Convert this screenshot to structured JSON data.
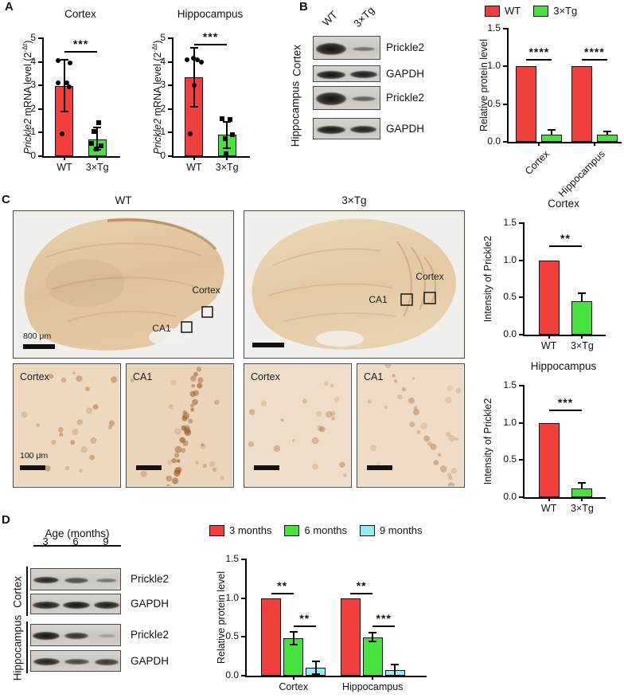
{
  "panel_labels": {
    "A": "A",
    "B": "B",
    "C": "C",
    "D": "D"
  },
  "colors": {
    "wt_red": "#f23e3c",
    "tg_green": "#46e13c",
    "cyan_9mo": "#8deef5"
  },
  "panel_c": {
    "columns": [
      {
        "title": "WT"
      },
      {
        "title": "3×Tg"
      }
    ],
    "region_labels": {
      "cortex": "Cortex",
      "ca1": "CA1"
    },
    "scale_large": "800 μm",
    "scale_small": "100 μm",
    "insets": [
      {
        "label": "Cortex"
      },
      {
        "label": "CA1"
      },
      {
        "label": "Cortex"
      },
      {
        "label": "CA1"
      }
    ]
  },
  "blot_b": {
    "lanes": [
      "WT",
      "3×Tg"
    ],
    "groups": [
      {
        "label": "Cortex",
        "strips": [
          {
            "label": "Prickle2",
            "bands": [
              1.0,
              0.38
            ]
          },
          {
            "label": "GAPDH",
            "bands": [
              1.0,
              0.95
            ]
          }
        ]
      },
      {
        "label": "Hippocampus",
        "strips": [
          {
            "label": "Prickle2",
            "bands": [
              1.0,
              0.5
            ]
          },
          {
            "label": "GAPDH",
            "bands": [
              1.0,
              0.92
            ]
          }
        ]
      }
    ]
  },
  "blot_d": {
    "header": "Age (months)",
    "lanes": [
      "3",
      "6",
      "9"
    ],
    "groups": [
      {
        "label": "Cortex",
        "strips": [
          {
            "label": "Prickle2",
            "bands": [
              0.9,
              0.62,
              0.35
            ]
          },
          {
            "label": "GAPDH",
            "bands": [
              0.95,
              1.0,
              0.95
            ]
          }
        ]
      },
      {
        "label": "Hippocampus",
        "strips": [
          {
            "label": "Prickle2",
            "bands": [
              1.0,
              0.8,
              0.07
            ]
          },
          {
            "label": "GAPDH",
            "bands": [
              0.9,
              0.65,
              0.75
            ]
          }
        ]
      }
    ]
  },
  "chart_data": [
    {
      "id": "a_cortex",
      "type": "bar",
      "title": "Cortex",
      "ylabel": "Prickle2 mRNA level (2-Δt)",
      "ylabel_segments": [
        {
          "t": "Prickle2",
          "i": 1
        },
        {
          "t": " mRNA level (2"
        },
        {
          "t": "-Δt",
          "s": 1
        },
        {
          "t": ")"
        }
      ],
      "ylim": [
        0,
        5
      ],
      "yticks": [
        {
          "v": 0,
          "l": "0"
        },
        {
          "v": 1,
          "l": "1"
        },
        {
          "v": 2,
          "l": "2"
        },
        {
          "v": 3,
          "l": "3"
        },
        {
          "v": 4,
          "l": "4"
        },
        {
          "v": 5,
          "l": "5"
        }
      ],
      "groups": [
        {
          "label": "WT",
          "bars": [
            {
              "series": "WT",
              "color": "#f23e3c",
              "value": 2.98,
              "err": [
                1.9,
                4.1
              ],
              "points": {
                "marker": "circle",
                "data": [
                  {
                    "v": 4.05,
                    "dx": -8
                  },
                  {
                    "v": 3.95,
                    "dx": 7
                  },
                  {
                    "v": 3.1,
                    "dx": -8
                  },
                  {
                    "v": 3.1,
                    "dx": 3
                  },
                  {
                    "v": 2.95,
                    "dx": 6
                  },
                  {
                    "v": 0.95,
                    "dx": -3
                  }
                ]
              }
            }
          ]
        },
        {
          "label": "3×Tg",
          "bars": [
            {
              "series": "3×Tg",
              "color": "#46e13c",
              "value": 0.7,
              "err": [
                0.28,
                1.2
              ],
              "points": {
                "marker": "square",
                "data": [
                  {
                    "v": 1.42,
                    "dx": 2
                  },
                  {
                    "v": 1.05,
                    "dx": -4
                  },
                  {
                    "v": 0.55,
                    "dx": -7
                  },
                  {
                    "v": 0.45,
                    "dx": 5
                  },
                  {
                    "v": 0.32,
                    "dx": -1
                  }
                ]
              }
            }
          ]
        }
      ],
      "significance": [
        {
          "g1": 0,
          "b1": 0,
          "g2": 1,
          "b2": 0,
          "y": 4.45,
          "stars": "***"
        }
      ]
    },
    {
      "id": "a_hippocampus",
      "type": "bar",
      "title": "Hippocampus",
      "ylabel": "Prickle2 mRNA level (2-Δt)",
      "ylabel_segments": [
        {
          "t": "Prickle2",
          "i": 1
        },
        {
          "t": " mRNA level (2"
        },
        {
          "t": "-Δt",
          "s": 1
        },
        {
          "t": ")"
        }
      ],
      "ylim": [
        0,
        5
      ],
      "yticks": [
        {
          "v": 0,
          "l": "0"
        },
        {
          "v": 1,
          "l": "1"
        },
        {
          "v": 2,
          "l": "2"
        },
        {
          "v": 3,
          "l": "3"
        },
        {
          "v": 4,
          "l": "4"
        },
        {
          "v": 5,
          "l": "5"
        }
      ],
      "groups": [
        {
          "label": "WT",
          "bars": [
            {
              "series": "WT",
              "color": "#f23e3c",
              "value": 3.35,
              "err": [
                2.1,
                4.6
              ],
              "points": {
                "marker": "circle",
                "data": [
                  {
                    "v": 4.1,
                    "dx": -9
                  },
                  {
                    "v": 4.15,
                    "dx": -1
                  },
                  {
                    "v": 4.1,
                    "dx": 4
                  },
                  {
                    "v": 4.0,
                    "dx": 9
                  },
                  {
                    "v": 3.0,
                    "dx": 0
                  },
                  {
                    "v": 0.95,
                    "dx": -5
                  }
                ]
              }
            }
          ]
        },
        {
          "label": "3×Tg",
          "bars": [
            {
              "series": "3×Tg",
              "color": "#46e13c",
              "value": 0.9,
              "err": [
                0.35,
                1.45
              ],
              "points": {
                "marker": "square",
                "data": [
                  {
                    "v": 1.6,
                    "dx": -6
                  },
                  {
                    "v": 1.55,
                    "dx": 4
                  },
                  {
                    "v": 0.9,
                    "dx": 7
                  },
                  {
                    "v": 0.75,
                    "dx": -2
                  },
                  {
                    "v": 0.1,
                    "dx": -1
                  }
                ]
              }
            }
          ]
        }
      ],
      "significance": [
        {
          "g1": 0,
          "b1": 0,
          "g2": 1,
          "b2": 0,
          "y": 4.75,
          "stars": "***"
        }
      ]
    },
    {
      "id": "b_protein",
      "type": "grouped_bar",
      "legend": [
        {
          "label": "WT",
          "color": "#f23e3c"
        },
        {
          "label": "3×Tg",
          "color": "#46e13c"
        }
      ],
      "ylabel": "Relative protein level",
      "ylabel_segments": [
        {
          "t": "Relative protein level"
        }
      ],
      "ylim": [
        0,
        1.5
      ],
      "yticks": [
        {
          "v": 0,
          "l": "0.0"
        },
        {
          "v": 0.5,
          "l": "0.5"
        },
        {
          "v": 1.0,
          "l": "1.0"
        },
        {
          "v": 1.5,
          "l": "1.5"
        }
      ],
      "groups": [
        {
          "label": "Cortex",
          "bars": [
            {
              "series": "WT",
              "color": "#f23e3c",
              "value": 1.0
            },
            {
              "series": "3×Tg",
              "color": "#46e13c",
              "value": 0.1,
              "err": [
                0.1,
                0.16
              ]
            }
          ]
        },
        {
          "label": "Hippocampus",
          "bars": [
            {
              "series": "WT",
              "color": "#f23e3c",
              "value": 1.0
            },
            {
              "series": "3×Tg",
              "color": "#46e13c",
              "value": 0.09,
              "err": [
                0.09,
                0.14
              ]
            }
          ]
        }
      ],
      "significance": [
        {
          "g1": 0,
          "b1": 0,
          "g2": 0,
          "b2": 1,
          "y": 1.1,
          "stars": "****"
        },
        {
          "g1": 1,
          "b1": 0,
          "g2": 1,
          "b2": 1,
          "y": 1.1,
          "stars": "****"
        }
      ]
    },
    {
      "id": "c_cortex",
      "type": "bar",
      "title": "Cortex",
      "ylabel": "Intensity of Prickle2",
      "ylabel_segments": [
        {
          "t": "Intensity of Prickle2"
        }
      ],
      "ylim": [
        0,
        1.5
      ],
      "yticks": [
        {
          "v": 0,
          "l": "0.0"
        },
        {
          "v": 0.5,
          "l": "0.5"
        },
        {
          "v": 1.0,
          "l": "1.0"
        },
        {
          "v": 1.5,
          "l": "1.5"
        }
      ],
      "groups": [
        {
          "label": "WT",
          "bars": [
            {
              "series": "WT",
              "color": "#f23e3c",
              "value": 1.0
            }
          ]
        },
        {
          "label": "3×Tg",
          "bars": [
            {
              "series": "3×Tg",
              "color": "#46e13c",
              "value": 0.45,
              "err": [
                0.45,
                0.56
              ]
            }
          ]
        }
      ],
      "significance": [
        {
          "g1": 0,
          "b1": 0,
          "g2": 1,
          "b2": 0,
          "y": 1.2,
          "stars": "**"
        }
      ]
    },
    {
      "id": "c_hippocampus",
      "type": "bar",
      "title": "Hippocampus",
      "ylabel": "Intensity of Prickle2",
      "ylabel_segments": [
        {
          "t": "Intensity of Prickle2"
        }
      ],
      "ylim": [
        0,
        1.5
      ],
      "yticks": [
        {
          "v": 0,
          "l": "0.0"
        },
        {
          "v": 0.5,
          "l": "0.5"
        },
        {
          "v": 1.0,
          "l": "1.0"
        },
        {
          "v": 1.5,
          "l": "1.5"
        }
      ],
      "groups": [
        {
          "label": "WT",
          "bars": [
            {
              "series": "WT",
              "color": "#f23e3c",
              "value": 1.0
            }
          ]
        },
        {
          "label": "3×Tg",
          "bars": [
            {
              "series": "3×Tg",
              "color": "#46e13c",
              "value": 0.12,
              "err": [
                0.12,
                0.19
              ]
            }
          ]
        }
      ],
      "significance": [
        {
          "g1": 0,
          "b1": 0,
          "g2": 1,
          "b2": 0,
          "y": 1.18,
          "stars": "***"
        }
      ]
    },
    {
      "id": "d_age",
      "type": "grouped_bar",
      "legend": [
        {
          "label": "3 months",
          "color": "#f23e3c"
        },
        {
          "label": "6 months",
          "color": "#46e13c"
        },
        {
          "label": "9 months",
          "color": "#8deef5"
        }
      ],
      "ylabel": "Relative protein level",
      "ylabel_segments": [
        {
          "t": "Relative protein level"
        }
      ],
      "ylim": [
        0,
        1.5
      ],
      "yticks": [
        {
          "v": 0,
          "l": "0.0"
        },
        {
          "v": 0.5,
          "l": "0.5"
        },
        {
          "v": 1.0,
          "l": "1.0"
        },
        {
          "v": 1.5,
          "l": "1.5"
        }
      ],
      "groups": [
        {
          "label": "Cortex",
          "bars": [
            {
              "series": "3 months",
              "color": "#f23e3c",
              "value": 1.0
            },
            {
              "series": "6 months",
              "color": "#46e13c",
              "value": 0.48,
              "err": [
                0.4,
                0.57
              ]
            },
            {
              "series": "9 months",
              "color": "#8deef5",
              "value": 0.1,
              "err": [
                0.02,
                0.18
              ]
            }
          ]
        },
        {
          "label": "Hippocampus",
          "bars": [
            {
              "series": "3 months",
              "color": "#f23e3c",
              "value": 1.0
            },
            {
              "series": "6 months",
              "color": "#46e13c",
              "value": 0.49,
              "err": [
                0.44,
                0.55
              ]
            },
            {
              "series": "9 months",
              "color": "#8deef5",
              "value": 0.07,
              "err": [
                0.0,
                0.14
              ]
            }
          ]
        }
      ],
      "significance": [
        {
          "g1": 0,
          "b1": 0,
          "g2": 0,
          "b2": 1,
          "y": 1.07,
          "stars": "**"
        },
        {
          "g1": 0,
          "b1": 1,
          "g2": 0,
          "b2": 2,
          "y": 0.65,
          "stars": "**"
        },
        {
          "g1": 1,
          "b1": 0,
          "g2": 1,
          "b2": 1,
          "y": 1.07,
          "stars": "**"
        },
        {
          "g1": 1,
          "b1": 1,
          "g2": 1,
          "b2": 2,
          "y": 0.65,
          "stars": "***"
        }
      ]
    }
  ]
}
